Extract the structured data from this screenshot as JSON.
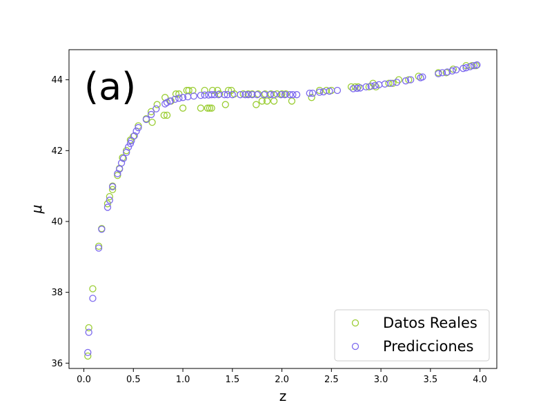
{
  "chart_data": {
    "type": "scatter",
    "panel_label": "(a)",
    "xlabel": "z",
    "ylabel": "μ",
    "xlim": [
      -0.15,
      4.17
    ],
    "ylim": [
      35.85,
      44.85
    ],
    "xticks": [
      0.0,
      0.5,
      1.0,
      1.5,
      2.0,
      2.5,
      3.0,
      3.5,
      4.0
    ],
    "xtick_labels": [
      "0.0",
      "0.5",
      "1.0",
      "1.5",
      "2.0",
      "2.5",
      "3.0",
      "3.5",
      "4.0"
    ],
    "yticks": [
      36,
      38,
      40,
      42,
      44
    ],
    "ytick_labels": [
      "36",
      "38",
      "40",
      "42",
      "44"
    ],
    "legend": {
      "placement": "lower-right"
    },
    "series": [
      {
        "name": "Datos Reales",
        "color": "#9acd32",
        "marker": "open-circle",
        "points": [
          [
            0.04,
            36.2
          ],
          [
            0.05,
            37.0
          ],
          [
            0.09,
            38.1
          ],
          [
            0.15,
            39.3
          ],
          [
            0.18,
            39.8
          ],
          [
            0.24,
            40.5
          ],
          [
            0.26,
            40.7
          ],
          [
            0.29,
            41.0
          ],
          [
            0.29,
            40.9
          ],
          [
            0.34,
            41.3
          ],
          [
            0.36,
            41.5
          ],
          [
            0.39,
            41.8
          ],
          [
            0.43,
            42.0
          ],
          [
            0.47,
            42.3
          ],
          [
            0.5,
            42.4
          ],
          [
            0.55,
            42.7
          ],
          [
            0.63,
            42.9
          ],
          [
            0.68,
            43.1
          ],
          [
            0.69,
            42.8
          ],
          [
            0.74,
            43.3
          ],
          [
            0.81,
            43.0
          ],
          [
            0.82,
            43.5
          ],
          [
            0.84,
            43.0
          ],
          [
            0.88,
            43.4
          ],
          [
            0.93,
            43.6
          ],
          [
            0.96,
            43.6
          ],
          [
            1.0,
            43.2
          ],
          [
            1.04,
            43.7
          ],
          [
            1.06,
            43.7
          ],
          [
            1.1,
            43.7
          ],
          [
            1.18,
            43.2
          ],
          [
            1.22,
            43.7
          ],
          [
            1.25,
            43.2
          ],
          [
            1.27,
            43.2
          ],
          [
            1.29,
            43.2
          ],
          [
            1.3,
            43.7
          ],
          [
            1.35,
            43.7
          ],
          [
            1.37,
            43.6
          ],
          [
            1.43,
            43.3
          ],
          [
            1.46,
            43.7
          ],
          [
            1.49,
            43.7
          ],
          [
            1.52,
            43.6
          ],
          [
            1.61,
            43.6
          ],
          [
            1.66,
            43.6
          ],
          [
            1.7,
            43.6
          ],
          [
            1.74,
            43.3
          ],
          [
            1.76,
            43.6
          ],
          [
            1.8,
            43.4
          ],
          [
            1.83,
            43.6
          ],
          [
            1.85,
            43.4
          ],
          [
            1.89,
            43.6
          ],
          [
            1.92,
            43.4
          ],
          [
            1.95,
            43.6
          ],
          [
            2.0,
            43.6
          ],
          [
            2.04,
            43.6
          ],
          [
            2.1,
            43.4
          ],
          [
            2.3,
            43.5
          ],
          [
            2.38,
            43.7
          ],
          [
            2.45,
            43.7
          ],
          [
            2.5,
            43.7
          ],
          [
            2.7,
            43.8
          ],
          [
            2.74,
            43.8
          ],
          [
            2.77,
            43.8
          ],
          [
            2.88,
            43.8
          ],
          [
            2.92,
            43.9
          ],
          [
            2.95,
            43.8
          ],
          [
            3.08,
            43.9
          ],
          [
            3.12,
            43.9
          ],
          [
            3.18,
            44.0
          ],
          [
            3.28,
            44.0
          ],
          [
            3.38,
            44.1
          ],
          [
            3.58,
            44.2
          ],
          [
            3.66,
            44.2
          ],
          [
            3.73,
            44.3
          ],
          [
            3.86,
            44.4
          ],
          [
            3.92,
            44.4
          ],
          [
            3.96,
            44.4
          ]
        ]
      },
      {
        "name": "Predicciones",
        "color": "#7b68ee",
        "marker": "open-circle",
        "points": [
          [
            0.04,
            36.3
          ],
          [
            0.05,
            36.87
          ],
          [
            0.09,
            37.83
          ],
          [
            0.15,
            39.25
          ],
          [
            0.18,
            39.78
          ],
          [
            0.24,
            40.4
          ],
          [
            0.26,
            40.6
          ],
          [
            0.29,
            40.98
          ],
          [
            0.34,
            41.35
          ],
          [
            0.36,
            41.48
          ],
          [
            0.38,
            41.65
          ],
          [
            0.4,
            41.78
          ],
          [
            0.43,
            41.95
          ],
          [
            0.45,
            42.1
          ],
          [
            0.47,
            42.2
          ],
          [
            0.48,
            42.28
          ],
          [
            0.51,
            42.42
          ],
          [
            0.53,
            42.55
          ],
          [
            0.55,
            42.65
          ],
          [
            0.63,
            42.88
          ],
          [
            0.68,
            43.02
          ],
          [
            0.73,
            43.18
          ],
          [
            0.82,
            43.32
          ],
          [
            0.84,
            43.36
          ],
          [
            0.87,
            43.4
          ],
          [
            0.92,
            43.45
          ],
          [
            0.96,
            43.48
          ],
          [
            1.0,
            43.5
          ],
          [
            1.05,
            43.52
          ],
          [
            1.11,
            43.54
          ],
          [
            1.18,
            43.56
          ],
          [
            1.22,
            43.57
          ],
          [
            1.26,
            43.57
          ],
          [
            1.29,
            43.58
          ],
          [
            1.32,
            43.58
          ],
          [
            1.36,
            43.58
          ],
          [
            1.42,
            43.58
          ],
          [
            1.45,
            43.58
          ],
          [
            1.5,
            43.58
          ],
          [
            1.58,
            43.58
          ],
          [
            1.63,
            43.58
          ],
          [
            1.66,
            43.58
          ],
          [
            1.7,
            43.58
          ],
          [
            1.75,
            43.58
          ],
          [
            1.82,
            43.58
          ],
          [
            1.88,
            43.58
          ],
          [
            1.92,
            43.58
          ],
          [
            1.99,
            43.58
          ],
          [
            2.03,
            43.58
          ],
          [
            2.08,
            43.58
          ],
          [
            2.11,
            43.58
          ],
          [
            2.15,
            43.58
          ],
          [
            2.28,
            43.62
          ],
          [
            2.31,
            43.62
          ],
          [
            2.38,
            43.65
          ],
          [
            2.42,
            43.66
          ],
          [
            2.48,
            43.68
          ],
          [
            2.56,
            43.7
          ],
          [
            2.72,
            43.75
          ],
          [
            2.76,
            43.76
          ],
          [
            2.79,
            43.77
          ],
          [
            2.85,
            43.8
          ],
          [
            2.9,
            43.82
          ],
          [
            2.94,
            43.84
          ],
          [
            2.98,
            43.86
          ],
          [
            3.04,
            43.88
          ],
          [
            3.1,
            43.9
          ],
          [
            3.16,
            43.93
          ],
          [
            3.25,
            43.97
          ],
          [
            3.3,
            44.0
          ],
          [
            3.4,
            44.06
          ],
          [
            3.42,
            44.08
          ],
          [
            3.58,
            44.17
          ],
          [
            3.62,
            44.2
          ],
          [
            3.67,
            44.22
          ],
          [
            3.72,
            44.25
          ],
          [
            3.76,
            44.28
          ],
          [
            3.83,
            44.32
          ],
          [
            3.86,
            44.34
          ],
          [
            3.9,
            44.37
          ],
          [
            3.94,
            44.4
          ],
          [
            3.97,
            44.42
          ]
        ]
      }
    ]
  }
}
